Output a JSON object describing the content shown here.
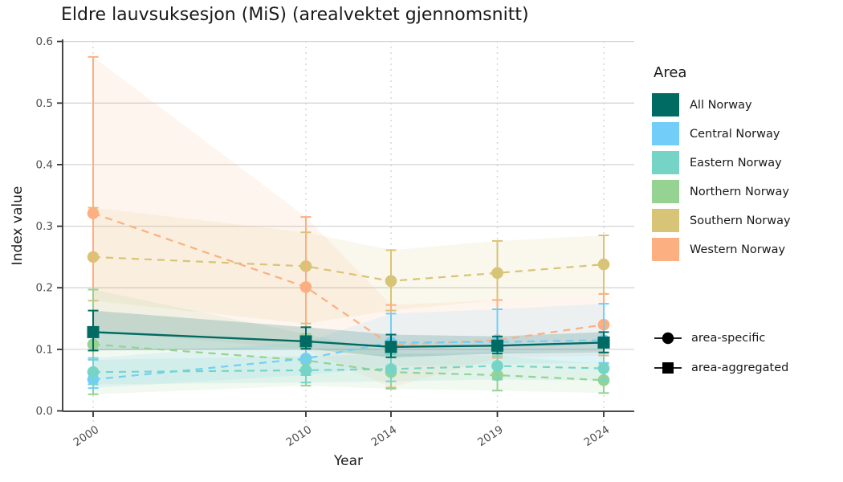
{
  "title": "Eldre lauvsuksesjon (MiS) (arealvektet gjennomsnitt)",
  "theme": {
    "background": "#ffffff",
    "grid_color": "#d4d4d4",
    "axis_color": "#333333",
    "tick_text_color": "#4d4d4d",
    "text_color": "#1a1a1a"
  },
  "chart_data": {
    "type": "line",
    "title": "Eldre lauvsuksesjon (MiS) (arealvektet gjennomsnitt)",
    "xlabel": "Year",
    "ylabel": "Index value",
    "x": [
      2000,
      2010,
      2014,
      2019,
      2024
    ],
    "x_ticklabels": [
      "2000",
      "2010",
      "2014",
      "2019",
      "2024"
    ],
    "ylim": [
      0.0,
      0.6
    ],
    "yticks": [
      0.0,
      0.1,
      0.2,
      0.3,
      0.4,
      0.5,
      0.6
    ],
    "y_ticklabels": [
      "0.0",
      "0.1",
      "0.2",
      "0.3",
      "0.4",
      "0.5",
      "0.6"
    ],
    "grid": "horizontal-solid, vertical-dotted",
    "legend_title": "Area",
    "legend_position": "right",
    "series": [
      {
        "name": "All Norway",
        "color": "#006b62",
        "marker": "square",
        "line": "solid",
        "role": "area-aggregated",
        "values": [
          0.128,
          0.113,
          0.104,
          0.106,
          0.111
        ],
        "ci_low": [
          0.098,
          0.101,
          0.087,
          0.093,
          0.095
        ],
        "ci_high": [
          0.163,
          0.136,
          0.124,
          0.121,
          0.128
        ]
      },
      {
        "name": "Central Norway",
        "color": "#72cef8",
        "marker": "circle",
        "line": "dashed",
        "role": "area-specific",
        "values": [
          0.051,
          0.085,
          0.111,
          0.112,
          0.115
        ],
        "ci_low": [
          0.037,
          0.058,
          0.072,
          0.076,
          0.078
        ],
        "ci_high": [
          0.086,
          0.112,
          0.158,
          0.165,
          0.174
        ]
      },
      {
        "name": "Eastern Norway",
        "color": "#76d4c7",
        "marker": "circle",
        "line": "dashed",
        "role": "area-specific",
        "values": [
          0.063,
          0.066,
          0.068,
          0.073,
          0.069
        ],
        "ci_low": [
          0.043,
          0.046,
          0.048,
          0.051,
          0.049
        ],
        "ci_high": [
          0.083,
          0.089,
          0.092,
          0.096,
          0.094
        ]
      },
      {
        "name": "Northern Norway",
        "color": "#96d292",
        "marker": "circle",
        "line": "dashed",
        "role": "area-specific",
        "values": [
          0.108,
          0.082,
          0.063,
          0.058,
          0.05
        ],
        "ci_low": [
          0.027,
          0.041,
          0.036,
          0.033,
          0.029
        ],
        "ci_high": [
          0.197,
          0.125,
          0.094,
          0.089,
          0.077
        ]
      },
      {
        "name": "Southern Norway",
        "color": "#d8c476",
        "marker": "circle",
        "line": "dashed",
        "role": "area-specific",
        "values": [
          0.25,
          0.235,
          0.211,
          0.224,
          0.238
        ],
        "ci_low": [
          0.179,
          0.142,
          0.163,
          0.18,
          0.19
        ],
        "ci_high": [
          0.33,
          0.29,
          0.261,
          0.276,
          0.285
        ]
      },
      {
        "name": "Western Norway",
        "color": "#fcaf80",
        "marker": "circle",
        "line": "dashed",
        "role": "area-specific",
        "values": [
          0.321,
          0.201,
          0.107,
          0.115,
          0.14
        ],
        "ci_low": [
          0.13,
          0.1,
          0.038,
          0.086,
          0.09
        ],
        "ci_high": [
          0.575,
          0.315,
          0.172,
          0.18,
          0.19
        ]
      }
    ],
    "shape_legend": [
      {
        "label": "area-specific",
        "marker": "circle"
      },
      {
        "label": "area-aggregated",
        "marker": "square"
      }
    ]
  }
}
